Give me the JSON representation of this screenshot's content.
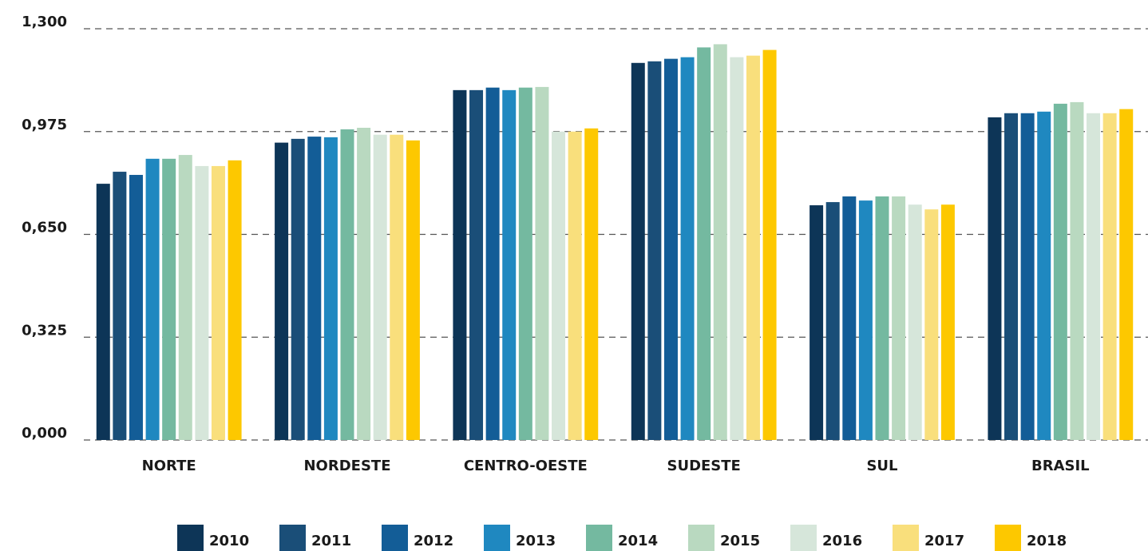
{
  "chart_data": {
    "type": "bar",
    "categories": [
      "NORTE",
      "NORDESTE",
      "CENTRO-OESTE",
      "SUDESTE",
      "SUL",
      "BRASIL"
    ],
    "series": [
      {
        "name": "2010",
        "color": "#0d3557",
        "values": [
          0.81,
          0.94,
          1.106,
          1.192,
          0.742,
          1.02
        ]
      },
      {
        "name": "2011",
        "color": "#1a4e78",
        "values": [
          0.848,
          0.952,
          1.106,
          1.197,
          0.752,
          1.033
        ]
      },
      {
        "name": "2012",
        "color": "#135d97",
        "values": [
          0.838,
          0.959,
          1.114,
          1.205,
          0.77,
          1.033
        ]
      },
      {
        "name": "2013",
        "color": "#1f88c0",
        "values": [
          0.889,
          0.957,
          1.106,
          1.21,
          0.757,
          1.038
        ]
      },
      {
        "name": "2014",
        "color": "#74b9a0",
        "values": [
          0.889,
          0.982,
          1.114,
          1.241,
          0.77,
          1.063
        ]
      },
      {
        "name": "2015",
        "color": "#b9d9c0",
        "values": [
          0.901,
          0.987,
          1.116,
          1.251,
          0.77,
          1.068
        ]
      },
      {
        "name": "2016",
        "color": "#d6e6da",
        "values": [
          0.866,
          0.965,
          0.975,
          1.21,
          0.744,
          1.033
        ]
      },
      {
        "name": "2017",
        "color": "#f9df7c",
        "values": [
          0.866,
          0.965,
          0.975,
          1.215,
          0.729,
          1.033
        ]
      },
      {
        "name": "2018",
        "color": "#fdc800",
        "values": [
          0.884,
          0.947,
          0.985,
          1.233,
          0.744,
          1.046
        ]
      }
    ],
    "ylim": [
      0,
      1.3
    ],
    "yticks": [
      {
        "value": 0,
        "label": "0,000"
      },
      {
        "value": 0.325,
        "label": "0,325"
      },
      {
        "value": 0.65,
        "label": "0,650"
      },
      {
        "value": 0.975,
        "label": "0,975"
      },
      {
        "value": 1.3,
        "label": "1,300"
      }
    ],
    "grid": true,
    "legend": "bottom"
  }
}
